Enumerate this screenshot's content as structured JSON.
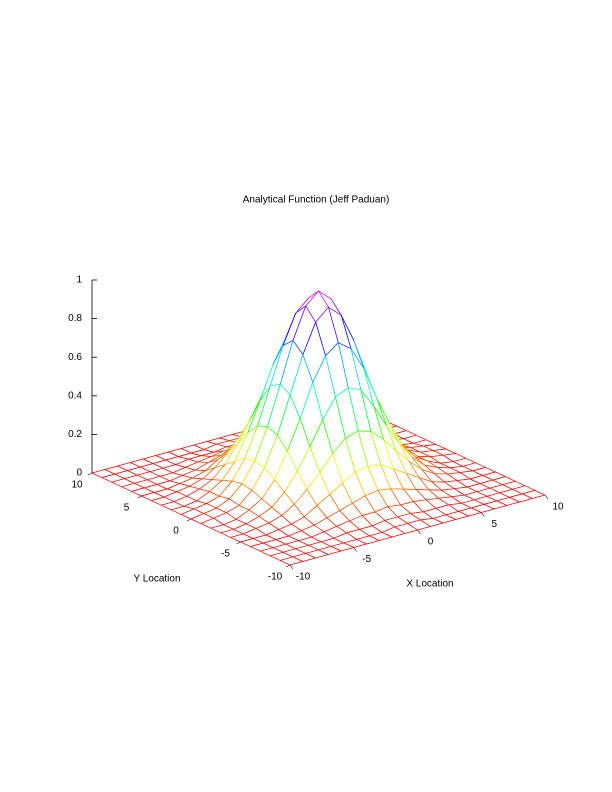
{
  "chart_data": {
    "type": "mesh",
    "title": "Analytical Function (Jeff Paduan)",
    "x_label": "X Location",
    "y_label": "Y Location",
    "x": [
      -10,
      -9,
      -8,
      -7,
      -6,
      -5,
      -4,
      -3,
      -2,
      -1,
      0,
      1,
      2,
      3,
      4,
      5,
      6,
      7,
      8,
      9,
      10
    ],
    "y": [
      -10,
      -9,
      -8,
      -7,
      -6,
      -5,
      -4,
      -3,
      -2,
      -1,
      0,
      1,
      2,
      3,
      4,
      5,
      6,
      7,
      8,
      9,
      10
    ],
    "z": [
      [
        0,
        0,
        0,
        0,
        0,
        0,
        0,
        0,
        0,
        0,
        0,
        0,
        0,
        0,
        0,
        0,
        0,
        0,
        0,
        0,
        0
      ],
      [
        0,
        0,
        0,
        0,
        0,
        0,
        0,
        0,
        0,
        0.01,
        0.01,
        0.01,
        0,
        0,
        0,
        0,
        0,
        0,
        0,
        0,
        0
      ],
      [
        0,
        0,
        0,
        0,
        0,
        0,
        0.01,
        0.01,
        0.01,
        0.02,
        0.02,
        0.02,
        0.01,
        0.01,
        0.01,
        0,
        0,
        0,
        0,
        0,
        0
      ],
      [
        0,
        0,
        0,
        0,
        0,
        0.01,
        0.02,
        0.03,
        0.04,
        0.04,
        0.05,
        0.04,
        0.04,
        0.03,
        0.02,
        0.01,
        0,
        0,
        0,
        0,
        0
      ],
      [
        0,
        0,
        0,
        0,
        0.01,
        0.02,
        0.04,
        0.06,
        0.08,
        0.1,
        0.11,
        0.1,
        0.08,
        0.06,
        0.04,
        0.02,
        0.01,
        0,
        0,
        0,
        0
      ],
      [
        0,
        0,
        0,
        0.01,
        0.02,
        0.04,
        0.08,
        0.12,
        0.16,
        0.2,
        0.21,
        0.2,
        0.16,
        0.12,
        0.08,
        0.04,
        0.02,
        0.01,
        0,
        0,
        0
      ],
      [
        0,
        0,
        0.01,
        0.02,
        0.04,
        0.08,
        0.14,
        0.21,
        0.29,
        0.35,
        0.37,
        0.35,
        0.29,
        0.21,
        0.14,
        0.08,
        0.04,
        0.02,
        0.01,
        0,
        0
      ],
      [
        0,
        0,
        0.01,
        0.03,
        0.06,
        0.12,
        0.21,
        0.32,
        0.44,
        0.54,
        0.57,
        0.54,
        0.44,
        0.32,
        0.21,
        0.12,
        0.06,
        0.03,
        0.01,
        0,
        0
      ],
      [
        0,
        0,
        0.01,
        0.04,
        0.08,
        0.16,
        0.29,
        0.44,
        0.61,
        0.73,
        0.78,
        0.73,
        0.61,
        0.44,
        0.29,
        0.16,
        0.08,
        0.04,
        0.01,
        0,
        0
      ],
      [
        0,
        0.01,
        0.02,
        0.04,
        0.1,
        0.2,
        0.35,
        0.54,
        0.73,
        0.88,
        0.94,
        0.88,
        0.73,
        0.54,
        0.35,
        0.2,
        0.1,
        0.04,
        0.02,
        0.01,
        0
      ],
      [
        0,
        0.01,
        0.02,
        0.05,
        0.11,
        0.21,
        0.37,
        0.57,
        0.78,
        0.94,
        1,
        0.94,
        0.78,
        0.57,
        0.37,
        0.21,
        0.11,
        0.05,
        0.02,
        0.01,
        0
      ],
      [
        0,
        0.01,
        0.02,
        0.04,
        0.1,
        0.2,
        0.35,
        0.54,
        0.73,
        0.88,
        0.94,
        0.88,
        0.73,
        0.54,
        0.35,
        0.2,
        0.1,
        0.04,
        0.02,
        0.01,
        0
      ],
      [
        0,
        0,
        0.01,
        0.04,
        0.08,
        0.16,
        0.29,
        0.44,
        0.61,
        0.73,
        0.78,
        0.73,
        0.61,
        0.44,
        0.29,
        0.16,
        0.08,
        0.04,
        0.01,
        0,
        0
      ],
      [
        0,
        0,
        0.01,
        0.03,
        0.06,
        0.12,
        0.21,
        0.32,
        0.44,
        0.54,
        0.57,
        0.54,
        0.44,
        0.32,
        0.21,
        0.12,
        0.06,
        0.03,
        0.01,
        0,
        0
      ],
      [
        0,
        0,
        0.01,
        0.02,
        0.04,
        0.08,
        0.14,
        0.21,
        0.29,
        0.35,
        0.37,
        0.35,
        0.29,
        0.21,
        0.14,
        0.08,
        0.04,
        0.02,
        0.01,
        0,
        0
      ],
      [
        0,
        0,
        0,
        0.01,
        0.02,
        0.04,
        0.08,
        0.12,
        0.16,
        0.2,
        0.21,
        0.2,
        0.16,
        0.12,
        0.08,
        0.04,
        0.02,
        0.01,
        0,
        0,
        0
      ],
      [
        0,
        0,
        0,
        0,
        0.01,
        0.02,
        0.04,
        0.06,
        0.08,
        0.1,
        0.11,
        0.1,
        0.08,
        0.06,
        0.04,
        0.02,
        0.01,
        0,
        0,
        0,
        0
      ],
      [
        0,
        0,
        0,
        0,
        0,
        0.01,
        0.02,
        0.03,
        0.04,
        0.04,
        0.05,
        0.04,
        0.04,
        0.03,
        0.02,
        0.01,
        0,
        0,
        0,
        0,
        0
      ],
      [
        0,
        0,
        0,
        0,
        0,
        0,
        0.01,
        0.01,
        0.01,
        0.02,
        0.02,
        0.02,
        0.01,
        0.01,
        0.01,
        0,
        0,
        0,
        0,
        0,
        0
      ],
      [
        0,
        0,
        0,
        0,
        0,
        0,
        0,
        0,
        0,
        0.01,
        0.01,
        0.01,
        0,
        0,
        0,
        0,
        0,
        0,
        0,
        0,
        0
      ],
      [
        0,
        0,
        0,
        0,
        0,
        0,
        0,
        0,
        0,
        0,
        0,
        0,
        0,
        0,
        0,
        0,
        0,
        0,
        0,
        0,
        0
      ]
    ],
    "xlim": [
      -10,
      10
    ],
    "xticks": [
      -10,
      -5,
      0,
      5,
      10
    ],
    "ylim": [
      -10,
      10
    ],
    "yticks": [
      -10,
      -5,
      0,
      5,
      10
    ],
    "zlim": [
      0,
      1
    ],
    "zticks": [
      0,
      0.2,
      0.4,
      0.6,
      0.8,
      1
    ],
    "colormap": "hsv"
  }
}
